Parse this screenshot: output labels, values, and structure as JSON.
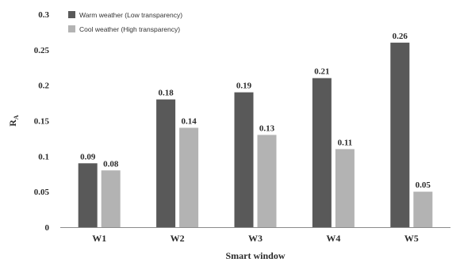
{
  "chart_data": {
    "type": "bar",
    "title": "",
    "xlabel": "Smart window",
    "ylabel": "R",
    "ylabel_subscript": "A",
    "ylim": [
      0,
      0.3
    ],
    "yticks": [
      "0",
      "0.05",
      "0.1",
      "0.15",
      "0.2",
      "0.25",
      "0.3"
    ],
    "grid": false,
    "legend_position": "top-left",
    "categories": [
      "W1",
      "W2",
      "W3",
      "W4",
      "W5"
    ],
    "series": [
      {
        "name": "Warm weather (Low transparency)",
        "color": "#595959",
        "values": [
          0.09,
          0.18,
          0.19,
          0.21,
          0.26
        ],
        "labels": [
          "0.09",
          "0.18",
          "0.19",
          "0.21",
          "0.26"
        ]
      },
      {
        "name": "Cool weather (High transparency)",
        "color": "#b3b3b3",
        "values": [
          0.08,
          0.14,
          0.13,
          0.11,
          0.05
        ],
        "labels": [
          "0.08",
          "0.14",
          "0.13",
          "0.11",
          "0.05"
        ]
      }
    ]
  }
}
